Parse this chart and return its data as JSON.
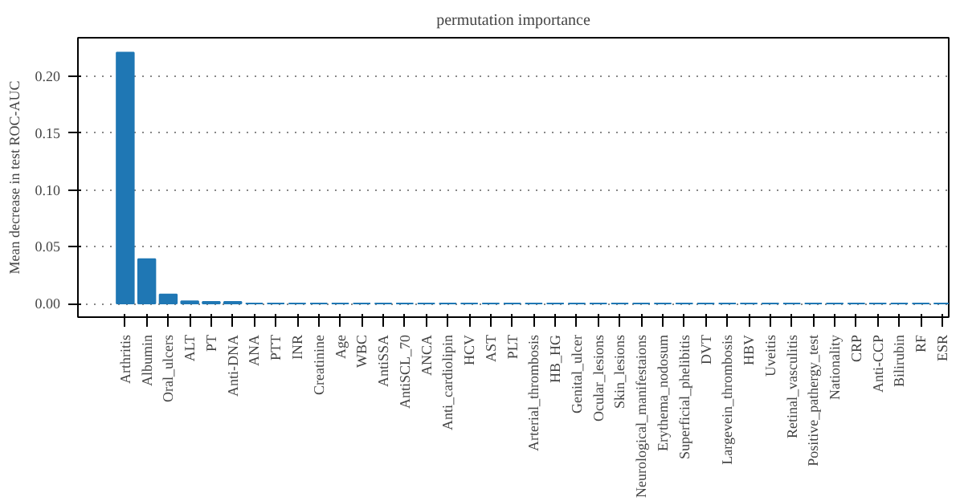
{
  "chart_data": {
    "type": "bar",
    "title": "permutation importance",
    "ylabel": "Mean decrease in test ROC-AUC",
    "categories": [
      "Arthritis",
      "Albumin",
      "Oral_ulcers",
      "ALT",
      "PT",
      "Anti-DNA",
      "ANA",
      "PTT",
      "INR",
      "Creatinine",
      "Age",
      "WBC",
      "AntiSSA",
      "AntiSCL_70",
      "ANCA",
      "Anti_cardiolipin",
      "HCV",
      "AST",
      "PLT",
      "Arterial_thrombosis",
      "HB_HG",
      "Genital_ulcer",
      "Ocular_lesions",
      "Skin_lesions",
      "Neurological_manifestaions",
      "Erythema_nodosum",
      "Superficial_phelibitis",
      "DVT",
      "Largevein_thrombosis",
      "HBV",
      "Uveitis",
      "Retinal_vasculitis",
      "Positive_pathergy_test",
      "Nationality",
      "CRP",
      "Anti-CCP",
      "Bilirubin",
      "RF",
      "ESR"
    ],
    "values": [
      0.221,
      0.039,
      0.008,
      0.002,
      0.0015,
      0.0015,
      0,
      0,
      0,
      0,
      0,
      0,
      0,
      0,
      0,
      0,
      0,
      0,
      0,
      0,
      0,
      0,
      0,
      0,
      0,
      0,
      0,
      0,
      0,
      0,
      0,
      0,
      0,
      0,
      0,
      0,
      0,
      0,
      0
    ],
    "color": "#1f77b4",
    "ylim": [
      -0.012,
      0.234
    ],
    "yticks": [
      {
        "value": 0,
        "label": "0.00"
      },
      {
        "value": 0.05,
        "label": "0.05"
      },
      {
        "value": 0.1,
        "label": "0.10"
      },
      {
        "value": 0.15,
        "label": "0.15"
      },
      {
        "value": 0.2,
        "label": "0.20"
      }
    ],
    "grid": "y"
  }
}
